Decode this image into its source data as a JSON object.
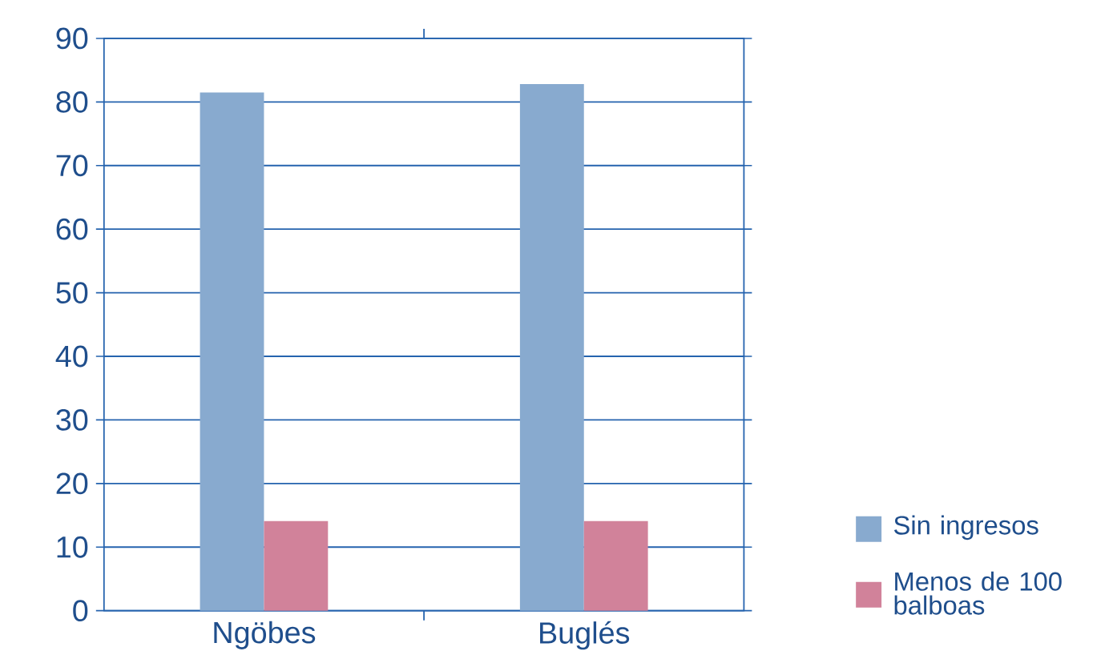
{
  "chart_data": {
    "type": "bar",
    "categories": [
      "Ngöbes",
      "Buglés"
    ],
    "series": [
      {
        "name": "Sin ingresos",
        "color": "#88aacf",
        "values": [
          81.5,
          82.8
        ]
      },
      {
        "name": "Menos de 100 balboas",
        "color": "#d1829a",
        "values": [
          14.1,
          14.1
        ]
      }
    ],
    "ylim": [
      0,
      90
    ],
    "yticks": [
      0,
      10,
      20,
      30,
      40,
      50,
      60,
      70,
      80,
      90
    ],
    "grid": "y",
    "legend": "right"
  }
}
